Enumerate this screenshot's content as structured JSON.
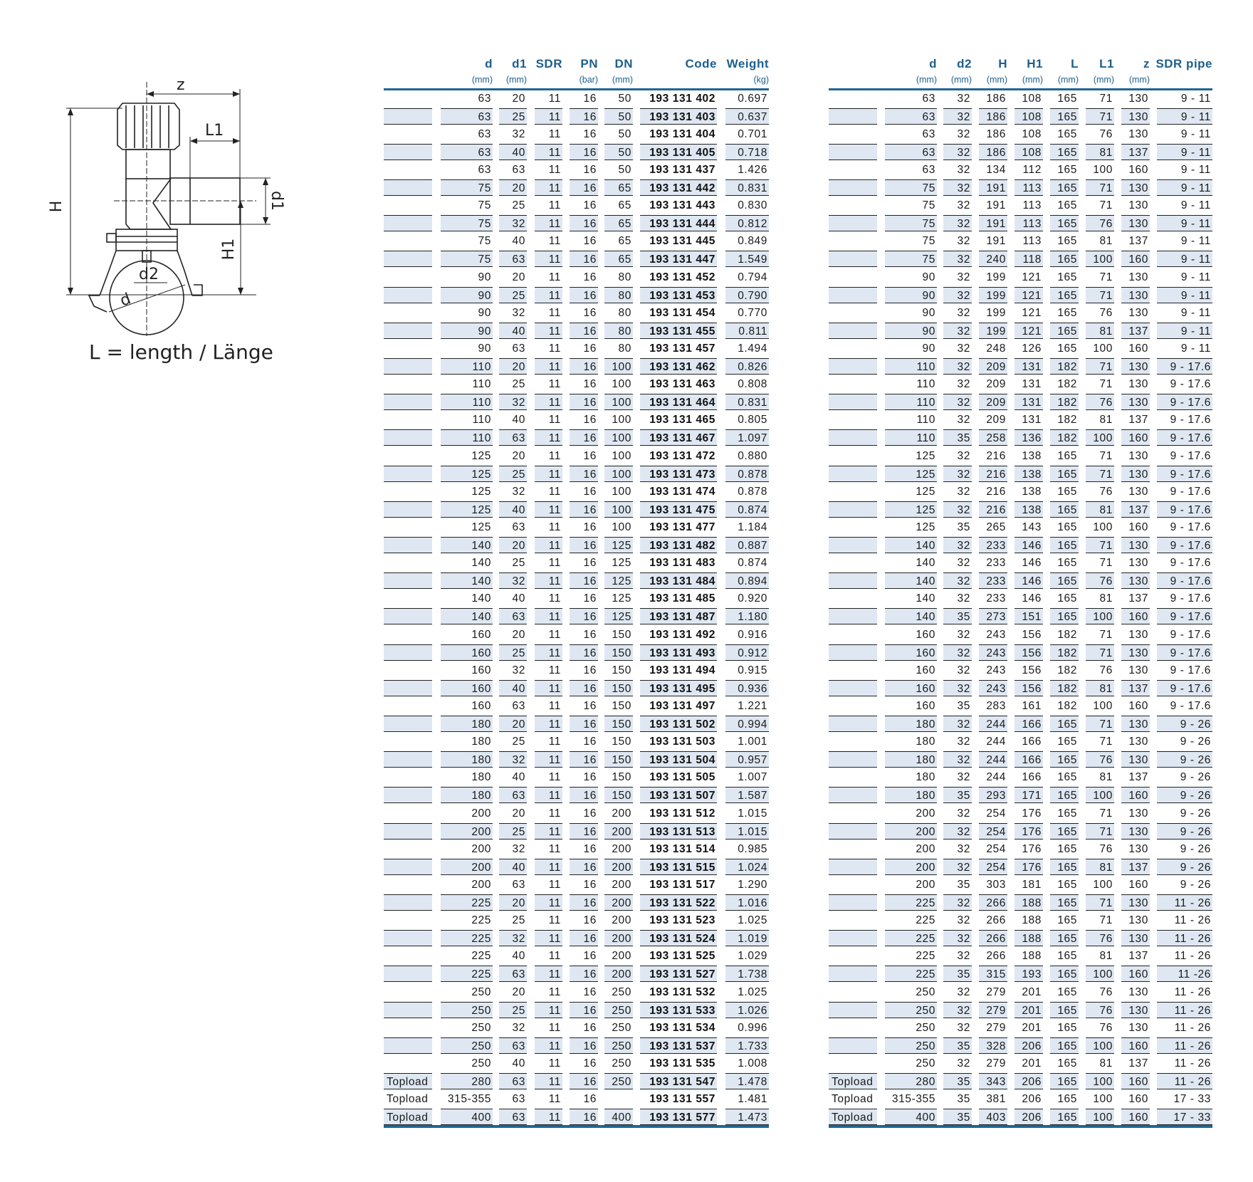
{
  "diagram": {
    "labels": {
      "z": "z",
      "L1": "L1",
      "H": "H",
      "H1": "H1",
      "d1": "d1",
      "d2": "d2",
      "d": "d"
    },
    "caption": "L = length / Länge"
  },
  "colors": {
    "header": "#1d5f8e",
    "shade": "#dfe8f2",
    "rule": "#1d6596"
  },
  "table_left": {
    "headers": [
      "",
      "d",
      "d1",
      "SDR",
      "PN",
      "DN",
      "Code",
      "Weight"
    ],
    "units": [
      "",
      "(mm)",
      "(mm)",
      "",
      "(bar)",
      "(mm)",
      "",
      "(kg)"
    ],
    "rows": [
      [
        "",
        "63",
        "20",
        "11",
        "16",
        "50",
        "193 131 402",
        "0.697"
      ],
      [
        "",
        "63",
        "25",
        "11",
        "16",
        "50",
        "193 131 403",
        "0.637"
      ],
      [
        "",
        "63",
        "32",
        "11",
        "16",
        "50",
        "193 131 404",
        "0.701"
      ],
      [
        "",
        "63",
        "40",
        "11",
        "16",
        "50",
        "193 131 405",
        "0.718"
      ],
      [
        "",
        "63",
        "63",
        "11",
        "16",
        "50",
        "193 131 437",
        "1.426"
      ],
      [
        "",
        "75",
        "20",
        "11",
        "16",
        "65",
        "193 131 442",
        "0.831"
      ],
      [
        "",
        "75",
        "25",
        "11",
        "16",
        "65",
        "193 131 443",
        "0.830"
      ],
      [
        "",
        "75",
        "32",
        "11",
        "16",
        "65",
        "193 131 444",
        "0.812"
      ],
      [
        "",
        "75",
        "40",
        "11",
        "16",
        "65",
        "193 131 445",
        "0.849"
      ],
      [
        "",
        "75",
        "63",
        "11",
        "16",
        "65",
        "193 131 447",
        "1.549"
      ],
      [
        "",
        "90",
        "20",
        "11",
        "16",
        "80",
        "193 131 452",
        "0.794"
      ],
      [
        "",
        "90",
        "25",
        "11",
        "16",
        "80",
        "193 131 453",
        "0.790"
      ],
      [
        "",
        "90",
        "32",
        "11",
        "16",
        "80",
        "193 131 454",
        "0.770"
      ],
      [
        "",
        "90",
        "40",
        "11",
        "16",
        "80",
        "193 131 455",
        "0.811"
      ],
      [
        "",
        "90",
        "63",
        "11",
        "16",
        "80",
        "193 131 457",
        "1.494"
      ],
      [
        "",
        "110",
        "20",
        "11",
        "16",
        "100",
        "193 131 462",
        "0.826"
      ],
      [
        "",
        "110",
        "25",
        "11",
        "16",
        "100",
        "193 131 463",
        "0.808"
      ],
      [
        "",
        "110",
        "32",
        "11",
        "16",
        "100",
        "193 131 464",
        "0.831"
      ],
      [
        "",
        "110",
        "40",
        "11",
        "16",
        "100",
        "193 131 465",
        "0.805"
      ],
      [
        "",
        "110",
        "63",
        "11",
        "16",
        "100",
        "193 131 467",
        "1.097"
      ],
      [
        "",
        "125",
        "20",
        "11",
        "16",
        "100",
        "193 131 472",
        "0.880"
      ],
      [
        "",
        "125",
        "25",
        "11",
        "16",
        "100",
        "193 131 473",
        "0.878"
      ],
      [
        "",
        "125",
        "32",
        "11",
        "16",
        "100",
        "193 131 474",
        "0.878"
      ],
      [
        "",
        "125",
        "40",
        "11",
        "16",
        "100",
        "193 131 475",
        "0.874"
      ],
      [
        "",
        "125",
        "63",
        "11",
        "16",
        "100",
        "193 131 477",
        "1.184"
      ],
      [
        "",
        "140",
        "20",
        "11",
        "16",
        "125",
        "193 131 482",
        "0.887"
      ],
      [
        "",
        "140",
        "25",
        "11",
        "16",
        "125",
        "193 131 483",
        "0.874"
      ],
      [
        "",
        "140",
        "32",
        "11",
        "16",
        "125",
        "193 131 484",
        "0.894"
      ],
      [
        "",
        "140",
        "40",
        "11",
        "16",
        "125",
        "193 131 485",
        "0.920"
      ],
      [
        "",
        "140",
        "63",
        "11",
        "16",
        "125",
        "193 131 487",
        "1.180"
      ],
      [
        "",
        "160",
        "20",
        "11",
        "16",
        "150",
        "193 131 492",
        "0.916"
      ],
      [
        "",
        "160",
        "25",
        "11",
        "16",
        "150",
        "193 131 493",
        "0.912"
      ],
      [
        "",
        "160",
        "32",
        "11",
        "16",
        "150",
        "193 131 494",
        "0.915"
      ],
      [
        "",
        "160",
        "40",
        "11",
        "16",
        "150",
        "193 131 495",
        "0.936"
      ],
      [
        "",
        "160",
        "63",
        "11",
        "16",
        "150",
        "193 131 497",
        "1.221"
      ],
      [
        "",
        "180",
        "20",
        "11",
        "16",
        "150",
        "193 131 502",
        "0.994"
      ],
      [
        "",
        "180",
        "25",
        "11",
        "16",
        "150",
        "193 131 503",
        "1.001"
      ],
      [
        "",
        "180",
        "32",
        "11",
        "16",
        "150",
        "193 131 504",
        "0.957"
      ],
      [
        "",
        "180",
        "40",
        "11",
        "16",
        "150",
        "193 131 505",
        "1.007"
      ],
      [
        "",
        "180",
        "63",
        "11",
        "16",
        "150",
        "193 131 507",
        "1.587"
      ],
      [
        "",
        "200",
        "20",
        "11",
        "16",
        "200",
        "193 131 512",
        "1.015"
      ],
      [
        "",
        "200",
        "25",
        "11",
        "16",
        "200",
        "193 131 513",
        "1.015"
      ],
      [
        "",
        "200",
        "32",
        "11",
        "16",
        "200",
        "193 131 514",
        "0.985"
      ],
      [
        "",
        "200",
        "40",
        "11",
        "16",
        "200",
        "193 131 515",
        "1.024"
      ],
      [
        "",
        "200",
        "63",
        "11",
        "16",
        "200",
        "193 131 517",
        "1.290"
      ],
      [
        "",
        "225",
        "20",
        "11",
        "16",
        "200",
        "193 131 522",
        "1.016"
      ],
      [
        "",
        "225",
        "25",
        "11",
        "16",
        "200",
        "193 131 523",
        "1.025"
      ],
      [
        "",
        "225",
        "32",
        "11",
        "16",
        "200",
        "193 131 524",
        "1.019"
      ],
      [
        "",
        "225",
        "40",
        "11",
        "16",
        "200",
        "193 131 525",
        "1.029"
      ],
      [
        "",
        "225",
        "63",
        "11",
        "16",
        "200",
        "193 131 527",
        "1.738"
      ],
      [
        "",
        "250",
        "20",
        "11",
        "16",
        "250",
        "193 131 532",
        "1.025"
      ],
      [
        "",
        "250",
        "25",
        "11",
        "16",
        "250",
        "193 131 533",
        "1.026"
      ],
      [
        "",
        "250",
        "32",
        "11",
        "16",
        "250",
        "193 131 534",
        "0.996"
      ],
      [
        "",
        "250",
        "63",
        "11",
        "16",
        "250",
        "193 131 537",
        "1.733"
      ],
      [
        "",
        "250",
        "40",
        "11",
        "16",
        "250",
        "193 131 535",
        "1.008"
      ],
      [
        "Topload",
        "280",
        "63",
        "11",
        "16",
        "250",
        "193 131 547",
        "1.478"
      ],
      [
        "Topload",
        "315-355",
        "63",
        "11",
        "16",
        "",
        "193 131 557",
        "1.481"
      ],
      [
        "Topload",
        "400",
        "63",
        "11",
        "16",
        "400",
        "193 131 577",
        "1.473"
      ]
    ]
  },
  "table_right": {
    "headers": [
      "",
      "d",
      "d2",
      "H",
      "H1",
      "L",
      "L1",
      "z",
      "SDR pipe"
    ],
    "units": [
      "",
      "(mm)",
      "(mm)",
      "(mm)",
      "(mm)",
      "(mm)",
      "(mm)",
      "(mm)",
      ""
    ],
    "rows": [
      [
        "",
        "63",
        "32",
        "186",
        "108",
        "165",
        "71",
        "130",
        "9 - 11"
      ],
      [
        "",
        "63",
        "32",
        "186",
        "108",
        "165",
        "71",
        "130",
        "9 - 11"
      ],
      [
        "",
        "63",
        "32",
        "186",
        "108",
        "165",
        "76",
        "130",
        "9 - 11"
      ],
      [
        "",
        "63",
        "32",
        "186",
        "108",
        "165",
        "81",
        "137",
        "9 - 11"
      ],
      [
        "",
        "63",
        "32",
        "134",
        "112",
        "165",
        "100",
        "160",
        "9 - 11"
      ],
      [
        "",
        "75",
        "32",
        "191",
        "113",
        "165",
        "71",
        "130",
        "9 - 11"
      ],
      [
        "",
        "75",
        "32",
        "191",
        "113",
        "165",
        "71",
        "130",
        "9 - 11"
      ],
      [
        "",
        "75",
        "32",
        "191",
        "113",
        "165",
        "76",
        "130",
        "9 - 11"
      ],
      [
        "",
        "75",
        "32",
        "191",
        "113",
        "165",
        "81",
        "137",
        "9 - 11"
      ],
      [
        "",
        "75",
        "32",
        "240",
        "118",
        "165",
        "100",
        "160",
        "9 - 11"
      ],
      [
        "",
        "90",
        "32",
        "199",
        "121",
        "165",
        "71",
        "130",
        "9 - 11"
      ],
      [
        "",
        "90",
        "32",
        "199",
        "121",
        "165",
        "71",
        "130",
        "9 - 11"
      ],
      [
        "",
        "90",
        "32",
        "199",
        "121",
        "165",
        "76",
        "130",
        "9 - 11"
      ],
      [
        "",
        "90",
        "32",
        "199",
        "121",
        "165",
        "81",
        "137",
        "9 - 11"
      ],
      [
        "",
        "90",
        "32",
        "248",
        "126",
        "165",
        "100",
        "160",
        "9 - 11"
      ],
      [
        "",
        "110",
        "32",
        "209",
        "131",
        "182",
        "71",
        "130",
        "9 - 17.6"
      ],
      [
        "",
        "110",
        "32",
        "209",
        "131",
        "182",
        "71",
        "130",
        "9 - 17.6"
      ],
      [
        "",
        "110",
        "32",
        "209",
        "131",
        "182",
        "76",
        "130",
        "9 - 17.6"
      ],
      [
        "",
        "110",
        "32",
        "209",
        "131",
        "182",
        "81",
        "137",
        "9 - 17.6"
      ],
      [
        "",
        "110",
        "35",
        "258",
        "136",
        "182",
        "100",
        "160",
        "9 - 17.6"
      ],
      [
        "",
        "125",
        "32",
        "216",
        "138",
        "165",
        "71",
        "130",
        "9 - 17.6"
      ],
      [
        "",
        "125",
        "32",
        "216",
        "138",
        "165",
        "71",
        "130",
        "9 - 17.6"
      ],
      [
        "",
        "125",
        "32",
        "216",
        "138",
        "165",
        "76",
        "130",
        "9 - 17.6"
      ],
      [
        "",
        "125",
        "32",
        "216",
        "138",
        "165",
        "81",
        "137",
        "9 - 17.6"
      ],
      [
        "",
        "125",
        "35",
        "265",
        "143",
        "165",
        "100",
        "160",
        "9 - 17.6"
      ],
      [
        "",
        "140",
        "32",
        "233",
        "146",
        "165",
        "71",
        "130",
        "9 - 17.6"
      ],
      [
        "",
        "140",
        "32",
        "233",
        "146",
        "165",
        "71",
        "130",
        "9 - 17.6"
      ],
      [
        "",
        "140",
        "32",
        "233",
        "146",
        "165",
        "76",
        "130",
        "9 - 17.6"
      ],
      [
        "",
        "140",
        "32",
        "233",
        "146",
        "165",
        "81",
        "137",
        "9 - 17.6"
      ],
      [
        "",
        "140",
        "35",
        "273",
        "151",
        "165",
        "100",
        "160",
        "9 - 17.6"
      ],
      [
        "",
        "160",
        "32",
        "243",
        "156",
        "182",
        "71",
        "130",
        "9 - 17.6"
      ],
      [
        "",
        "160",
        "32",
        "243",
        "156",
        "182",
        "71",
        "130",
        "9 - 17.6"
      ],
      [
        "",
        "160",
        "32",
        "243",
        "156",
        "182",
        "76",
        "130",
        "9 - 17.6"
      ],
      [
        "",
        "160",
        "32",
        "243",
        "156",
        "182",
        "81",
        "137",
        "9 - 17.6"
      ],
      [
        "",
        "160",
        "35",
        "283",
        "161",
        "182",
        "100",
        "160",
        "9 - 17.6"
      ],
      [
        "",
        "180",
        "32",
        "244",
        "166",
        "165",
        "71",
        "130",
        "9 - 26"
      ],
      [
        "",
        "180",
        "32",
        "244",
        "166",
        "165",
        "71",
        "130",
        "9 - 26"
      ],
      [
        "",
        "180",
        "32",
        "244",
        "166",
        "165",
        "76",
        "130",
        "9 - 26"
      ],
      [
        "",
        "180",
        "32",
        "244",
        "166",
        "165",
        "81",
        "137",
        "9 - 26"
      ],
      [
        "",
        "180",
        "35",
        "293",
        "171",
        "165",
        "100",
        "160",
        "9 - 26"
      ],
      [
        "",
        "200",
        "32",
        "254",
        "176",
        "165",
        "71",
        "130",
        "9 - 26"
      ],
      [
        "",
        "200",
        "32",
        "254",
        "176",
        "165",
        "71",
        "130",
        "9 - 26"
      ],
      [
        "",
        "200",
        "32",
        "254",
        "176",
        "165",
        "76",
        "130",
        "9 - 26"
      ],
      [
        "",
        "200",
        "32",
        "254",
        "176",
        "165",
        "81",
        "137",
        "9 - 26"
      ],
      [
        "",
        "200",
        "35",
        "303",
        "181",
        "165",
        "100",
        "160",
        "9 - 26"
      ],
      [
        "",
        "225",
        "32",
        "266",
        "188",
        "165",
        "71",
        "130",
        "11 - 26"
      ],
      [
        "",
        "225",
        "32",
        "266",
        "188",
        "165",
        "71",
        "130",
        "11 - 26"
      ],
      [
        "",
        "225",
        "32",
        "266",
        "188",
        "165",
        "76",
        "130",
        "11 - 26"
      ],
      [
        "",
        "225",
        "32",
        "266",
        "188",
        "165",
        "81",
        "137",
        "11 - 26"
      ],
      [
        "",
        "225",
        "35",
        "315",
        "193",
        "165",
        "100",
        "160",
        "11 -26"
      ],
      [
        "",
        "250",
        "32",
        "279",
        "201",
        "165",
        "76",
        "130",
        "11 - 26"
      ],
      [
        "",
        "250",
        "32",
        "279",
        "201",
        "165",
        "76",
        "130",
        "11 - 26"
      ],
      [
        "",
        "250",
        "32",
        "279",
        "201",
        "165",
        "76",
        "130",
        "11 - 26"
      ],
      [
        "",
        "250",
        "35",
        "328",
        "206",
        "165",
        "100",
        "160",
        "11 - 26"
      ],
      [
        "",
        "250",
        "32",
        "279",
        "201",
        "165",
        "81",
        "137",
        "11 - 26"
      ],
      [
        "Topload",
        "280",
        "35",
        "343",
        "206",
        "165",
        "100",
        "160",
        "11 - 26"
      ],
      [
        "Topload",
        "315-355",
        "35",
        "381",
        "206",
        "165",
        "100",
        "160",
        "17 - 33"
      ],
      [
        "Topload",
        "400",
        "35",
        "403",
        "206",
        "165",
        "100",
        "160",
        "17 - 33"
      ]
    ]
  }
}
